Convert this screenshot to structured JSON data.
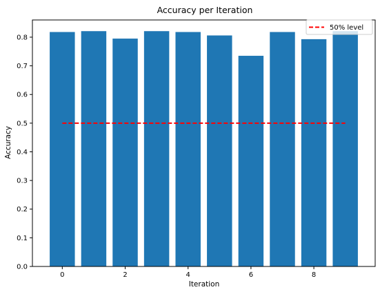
{
  "chart_data": {
    "type": "bar",
    "title": "Accuracy per Iteration",
    "xlabel": "Iteration",
    "ylabel": "Accuracy",
    "x": [
      0,
      1,
      2,
      3,
      4,
      5,
      6,
      7,
      8,
      9
    ],
    "values": [
      0.818,
      0.821,
      0.795,
      0.821,
      0.818,
      0.806,
      0.735,
      0.818,
      0.793,
      0.821
    ],
    "bar_color": "#1f77b4",
    "xlim": [
      -0.95,
      9.95
    ],
    "ylim": [
      0,
      0.86
    ],
    "xticks": [
      0,
      2,
      4,
      6,
      8
    ],
    "yticks": [
      0.0,
      0.1,
      0.2,
      0.3,
      0.4,
      0.5,
      0.6,
      0.7,
      0.8
    ],
    "xtick_labels": [
      "0",
      "2",
      "4",
      "6",
      "8"
    ],
    "ytick_labels": [
      "0.0",
      "0.1",
      "0.2",
      "0.3",
      "0.4",
      "0.5",
      "0.6",
      "0.7",
      "0.8"
    ],
    "reference_line": {
      "label": "50% level",
      "y": 0.5,
      "x_range": [
        0,
        9
      ],
      "color": "#ff0000",
      "style": "dashed"
    },
    "legend": {
      "placement": "top-right",
      "entries": [
        "50% level"
      ]
    },
    "grid": false
  }
}
